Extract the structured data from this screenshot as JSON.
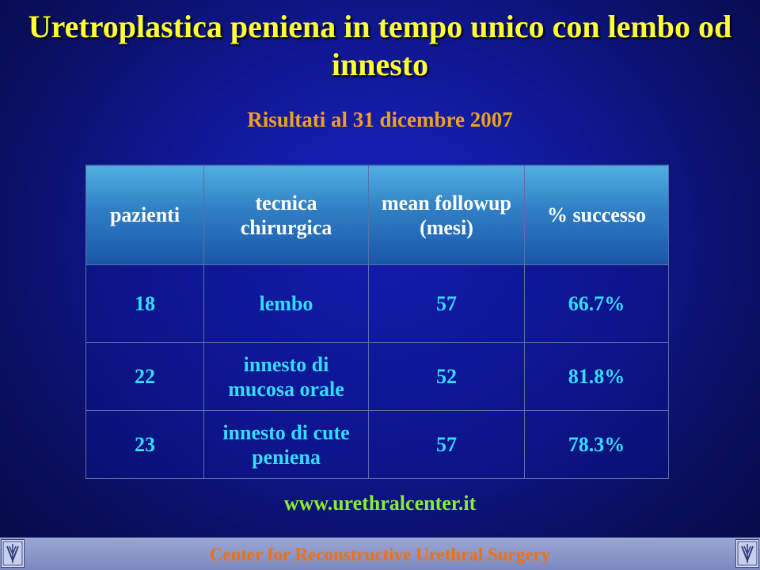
{
  "slide": {
    "title": "Uretroplastica peniena in tempo unico con lembo od innesto",
    "subtitle": "Risultati al 31 dicembre 2007",
    "website": "www.urethralcenter.it",
    "footer": "Center for Reconstructive Urethral Surgery"
  },
  "table": {
    "headers": [
      "pazienti",
      "tecnica chirurgica",
      "mean followup (mesi)",
      "% successo"
    ],
    "rows": [
      [
        "18",
        "lembo",
        "57",
        "66.7%"
      ],
      [
        "22",
        "innesto di mucosa orale",
        "52",
        "81.8%"
      ],
      [
        "23",
        "innesto di cute peniena",
        "57",
        "78.3%"
      ]
    ]
  },
  "logos": {
    "left_icon": "center-logo-icon",
    "right_icon": "center-logo-icon"
  },
  "colors": {
    "title": "#ffff33",
    "subtitle": "#f0a020",
    "cell_text": "#33ddff",
    "website": "#88ee33",
    "footer_text": "#f07010"
  }
}
